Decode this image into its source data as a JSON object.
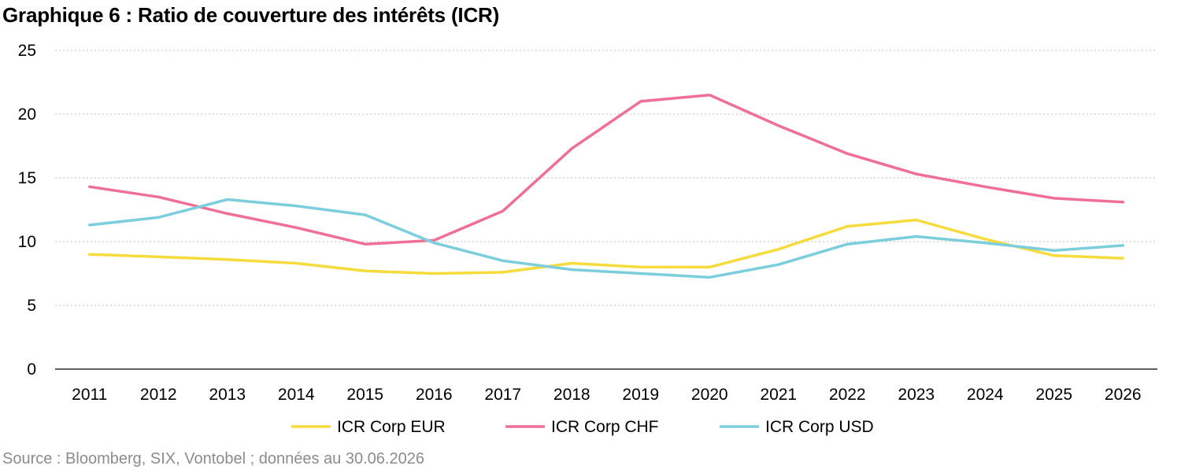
{
  "title": "Graphique 6 : Ratio de couverture des intérêts (ICR)",
  "source": "Source : Bloomberg, SIX, Vontobel ; données au 30.06.2026",
  "chart_data": {
    "type": "line",
    "title": "Graphique 6 : Ratio de couverture des intérêts (ICR)",
    "xlabel": "",
    "ylabel": "",
    "categories": [
      "2011",
      "2012",
      "2013",
      "2014",
      "2015",
      "2016",
      "2017",
      "2018",
      "2019",
      "2020",
      "2021",
      "2022",
      "2023",
      "2024",
      "2025",
      "2026"
    ],
    "ylim": [
      0,
      25
    ],
    "yticks": [
      0,
      5,
      10,
      15,
      20,
      25
    ],
    "grid": "horizontal-dotted",
    "legend_position": "bottom",
    "series": [
      {
        "name": "ICR Corp EUR",
        "color": "#F5DC3C",
        "values": [
          9.0,
          8.8,
          8.6,
          8.3,
          7.7,
          7.5,
          7.6,
          8.3,
          8.0,
          8.0,
          9.4,
          11.2,
          11.7,
          10.2,
          8.9,
          8.7
        ]
      },
      {
        "name": "ICR Corp CHF",
        "color": "#EE7096",
        "values": [
          14.3,
          13.5,
          12.2,
          11.1,
          9.8,
          10.1,
          12.4,
          17.3,
          21.0,
          21.5,
          19.1,
          16.9,
          15.3,
          14.3,
          13.4,
          13.1
        ]
      },
      {
        "name": "ICR Corp USD",
        "color": "#7CCEDD",
        "values": [
          11.3,
          11.9,
          13.3,
          12.8,
          12.1,
          9.9,
          8.5,
          7.8,
          7.5,
          7.2,
          8.2,
          9.8,
          10.4,
          9.9,
          9.3,
          9.7
        ]
      }
    ]
  }
}
